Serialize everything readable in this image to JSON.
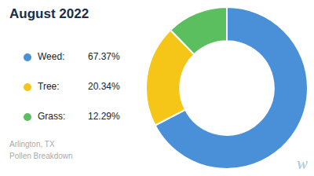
{
  "chart_data": {
    "type": "doughnut",
    "title": "August 2022",
    "subtitle": "Arlington, TX\nPollen Breakdown",
    "categories": [
      "Weed:",
      "Tree:",
      "Grass:"
    ],
    "values": [
      67.37,
      20.34,
      12.29
    ],
    "value_labels": [
      "67.37%",
      "20.34%",
      "12.29%"
    ],
    "colors": [
      "#4A90D9",
      "#F5C518",
      "#5CBF5F"
    ],
    "legend": "left",
    "annotations": [
      "w"
    ]
  }
}
